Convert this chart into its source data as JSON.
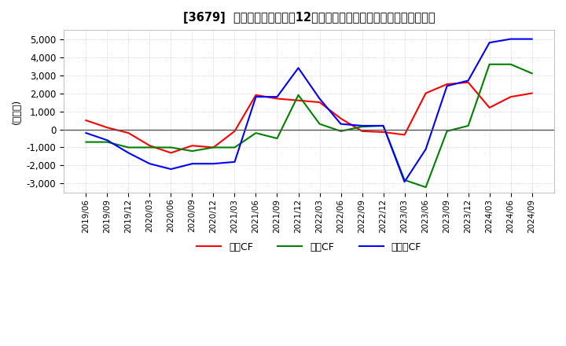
{
  "title": "[3679]  キャッシュフローの12か月移動合計の対前年同期増減額の推移",
  "ylabel": "(百万円)",
  "ylim": [
    -3500,
    5500
  ],
  "yticks": [
    -3000,
    -2000,
    -1000,
    0,
    1000,
    2000,
    3000,
    4000,
    5000
  ],
  "dates": [
    "2019/06",
    "2019/09",
    "2019/12",
    "2020/03",
    "2020/06",
    "2020/09",
    "2020/12",
    "2021/03",
    "2021/06",
    "2021/09",
    "2021/12",
    "2022/03",
    "2022/06",
    "2022/09",
    "2022/12",
    "2023/03",
    "2023/06",
    "2023/09",
    "2023/12",
    "2024/03",
    "2024/06",
    "2024/09"
  ],
  "operating_cf": [
    500,
    100,
    -200,
    -900,
    -1300,
    -900,
    -1000,
    -100,
    1900,
    1700,
    1600,
    1500,
    600,
    -100,
    -150,
    -300,
    2000,
    2500,
    2600,
    1200,
    1800,
    2000
  ],
  "investing_cf": [
    -700,
    -700,
    -1000,
    -1000,
    -1000,
    -1200,
    -1000,
    -1000,
    -200,
    -500,
    1900,
    300,
    -100,
    150,
    200,
    -2800,
    -3200,
    -100,
    200,
    3600,
    3600,
    3100
  ],
  "free_cf": [
    -200,
    -600,
    -1300,
    -1900,
    -2200,
    -1900,
    -1900,
    -1800,
    1800,
    1800,
    3400,
    1700,
    300,
    200,
    200,
    -2900,
    -1100,
    2400,
    2700,
    4800,
    5000,
    5000
  ],
  "operating_color": "#ff0000",
  "investing_color": "#008000",
  "free_cf_color": "#0000ff",
  "bg_color": "#ffffff",
  "plot_bg_color": "#ffffff",
  "grid_color": "#aaaaaa",
  "legend_labels": [
    "営業CF",
    "投賁CF",
    "フリーCF"
  ]
}
